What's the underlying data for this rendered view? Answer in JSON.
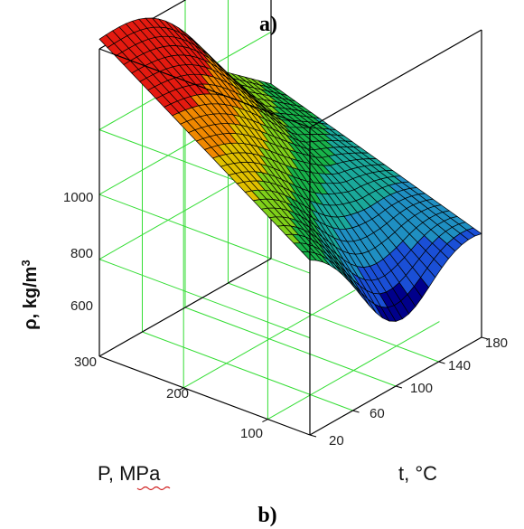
{
  "captions": {
    "top": "a)",
    "bottom": "b)"
  },
  "chart_data": {
    "type": "surface3d",
    "z_label": "ρ, kg/m",
    "z_label_sup": "3",
    "p_label": "P, MPa",
    "t_label": "t, °C",
    "z_ticks": [
      "300",
      "600",
      "800",
      "1000"
    ],
    "p_ticks": [
      "300",
      "200",
      "100"
    ],
    "t_ticks": [
      "20",
      "60",
      "100",
      "140",
      "180"
    ],
    "p_range": [
      50,
      300
    ],
    "t_range": [
      20,
      180
    ],
    "z_range": [
      300,
      1250
    ],
    "corner_values": [
      {
        "P": 300,
        "t": 20,
        "rho": 1200
      },
      {
        "P": 300,
        "t": 180,
        "rho": 840
      },
      {
        "P": 50,
        "t": 20,
        "rho": 840
      },
      {
        "P": 50,
        "t": 180,
        "rho": 620
      },
      {
        "P": 50,
        "t": 100,
        "rho": 470
      }
    ],
    "colormap": [
      "#00008b",
      "#1a4fd6",
      "#1f8fc2",
      "#1aa89a",
      "#18b34a",
      "#7fd01a",
      "#e0c000",
      "#f08800",
      "#e41a10"
    ],
    "colors": {
      "box": "#000000",
      "grid": "#33dd33",
      "mesh": "#000000"
    }
  }
}
